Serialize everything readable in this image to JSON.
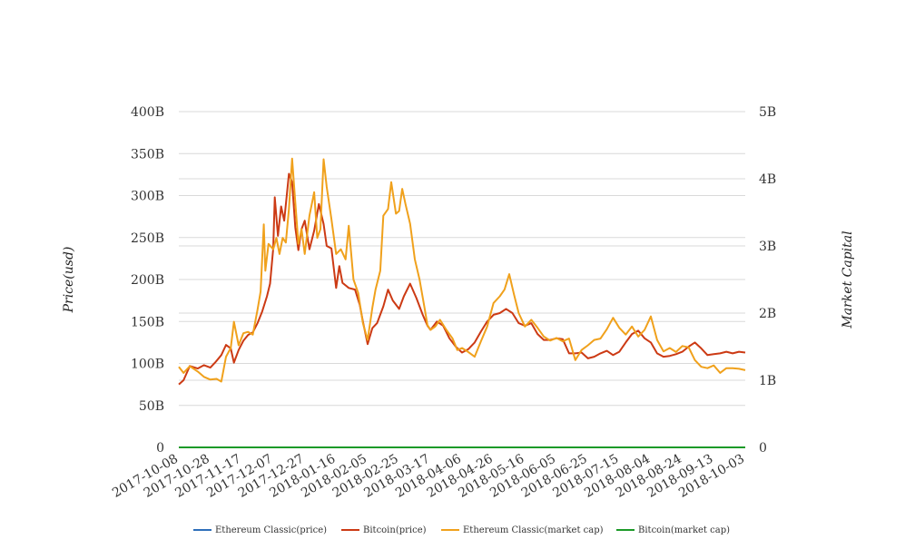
{
  "chart_data": {
    "type": "line",
    "title": "",
    "ylabel_left": "Price(usd)",
    "ylabel_right": "Market Capital",
    "y_left": {
      "min": 0,
      "max": 400000000000,
      "ticks": [
        0,
        50000000000,
        100000000000,
        150000000000,
        200000000000,
        250000000000,
        300000000000,
        350000000000,
        400000000000
      ],
      "tick_labels": [
        "0",
        "50B",
        "100B",
        "150B",
        "200B",
        "250B",
        "300B",
        "350B",
        "400B"
      ]
    },
    "y_right": {
      "min": 0,
      "max": 5000000000,
      "ticks": [
        0,
        1000000000,
        2000000000,
        3000000000,
        4000000000,
        5000000000
      ],
      "tick_labels": [
        "0",
        "1B",
        "2B",
        "3B",
        "4B",
        "5B"
      ]
    },
    "x_range": [
      "2017-10-08",
      "2018-10-03"
    ],
    "x_tick_labels": [
      "2017-10-08",
      "2017-10-28",
      "2017-11-17",
      "2017-12-07",
      "2017-12-27",
      "2018-01-16",
      "2018-02-05",
      "2018-02-25",
      "2018-03-17",
      "2018-04-06",
      "2018-04-26",
      "2018-05-16",
      "2018-06-05",
      "2018-06-25",
      "2018-07-15",
      "2018-08-04",
      "2018-08-24",
      "2018-09-13",
      "2018-10-03"
    ],
    "grid": true,
    "legend_position": "bottom",
    "series": [
      {
        "name": "Ethereum Classic(price)",
        "axis": "left",
        "color": "#2e6fba",
        "points": []
      },
      {
        "name": "Bitcoin(price)",
        "axis": "left",
        "color": "#cc3a14",
        "points": [
          [
            "2017-10-08",
            75000000000
          ],
          [
            "2017-10-11",
            80000000000
          ],
          [
            "2017-10-15",
            97000000000
          ],
          [
            "2017-10-20",
            94000000000
          ],
          [
            "2017-10-24",
            98000000000
          ],
          [
            "2017-10-28",
            95000000000
          ],
          [
            "2017-10-31",
            101000000000
          ],
          [
            "2017-11-04",
            110000000000
          ],
          [
            "2017-11-07",
            122000000000
          ],
          [
            "2017-11-10",
            118000000000
          ],
          [
            "2017-11-12",
            101000000000
          ],
          [
            "2017-11-15",
            116000000000
          ],
          [
            "2017-11-18",
            127000000000
          ],
          [
            "2017-11-21",
            134000000000
          ],
          [
            "2017-11-24",
            137000000000
          ],
          [
            "2017-11-27",
            148000000000
          ],
          [
            "2017-11-30",
            162000000000
          ],
          [
            "2017-12-03",
            180000000000
          ],
          [
            "2017-12-05",
            195000000000
          ],
          [
            "2017-12-07",
            237000000000
          ],
          [
            "2017-12-08",
            298000000000
          ],
          [
            "2017-12-10",
            252000000000
          ],
          [
            "2017-12-12",
            287000000000
          ],
          [
            "2017-12-14",
            270000000000
          ],
          [
            "2017-12-17",
            326000000000
          ],
          [
            "2017-12-19",
            316000000000
          ],
          [
            "2017-12-21",
            262000000000
          ],
          [
            "2017-12-23",
            235000000000
          ],
          [
            "2017-12-25",
            260000000000
          ],
          [
            "2017-12-27",
            270000000000
          ],
          [
            "2017-12-30",
            236000000000
          ],
          [
            "2018-01-02",
            258000000000
          ],
          [
            "2018-01-05",
            290000000000
          ],
          [
            "2018-01-08",
            266000000000
          ],
          [
            "2018-01-10",
            240000000000
          ],
          [
            "2018-01-13",
            237000000000
          ],
          [
            "2018-01-16",
            190000000000
          ],
          [
            "2018-01-18",
            216000000000
          ],
          [
            "2018-01-20",
            196000000000
          ],
          [
            "2018-01-24",
            190000000000
          ],
          [
            "2018-01-28",
            188000000000
          ],
          [
            "2018-01-31",
            170000000000
          ],
          [
            "2018-02-02",
            150000000000
          ],
          [
            "2018-02-05",
            123000000000
          ],
          [
            "2018-02-08",
            142000000000
          ],
          [
            "2018-02-11",
            148000000000
          ],
          [
            "2018-02-15",
            168000000000
          ],
          [
            "2018-02-18",
            188000000000
          ],
          [
            "2018-02-21",
            175000000000
          ],
          [
            "2018-02-25",
            165000000000
          ],
          [
            "2018-02-28",
            180000000000
          ],
          [
            "2018-03-04",
            195000000000
          ],
          [
            "2018-03-08",
            178000000000
          ],
          [
            "2018-03-12",
            158000000000
          ],
          [
            "2018-03-15",
            145000000000
          ],
          [
            "2018-03-17",
            140000000000
          ],
          [
            "2018-03-21",
            150000000000
          ],
          [
            "2018-03-25",
            145000000000
          ],
          [
            "2018-03-29",
            130000000000
          ],
          [
            "2018-04-02",
            120000000000
          ],
          [
            "2018-04-06",
            113000000000
          ],
          [
            "2018-04-10",
            117000000000
          ],
          [
            "2018-04-14",
            125000000000
          ],
          [
            "2018-04-18",
            138000000000
          ],
          [
            "2018-04-22",
            150000000000
          ],
          [
            "2018-04-26",
            158000000000
          ],
          [
            "2018-04-30",
            160000000000
          ],
          [
            "2018-05-04",
            165000000000
          ],
          [
            "2018-05-08",
            160000000000
          ],
          [
            "2018-05-12",
            148000000000
          ],
          [
            "2018-05-16",
            145000000000
          ],
          [
            "2018-05-20",
            148000000000
          ],
          [
            "2018-05-24",
            135000000000
          ],
          [
            "2018-05-28",
            128000000000
          ],
          [
            "2018-06-01",
            128000000000
          ],
          [
            "2018-06-05",
            130000000000
          ],
          [
            "2018-06-09",
            129000000000
          ],
          [
            "2018-06-13",
            112000000000
          ],
          [
            "2018-06-17",
            112000000000
          ],
          [
            "2018-06-21",
            113000000000
          ],
          [
            "2018-06-25",
            106000000000
          ],
          [
            "2018-06-29",
            108000000000
          ],
          [
            "2018-07-03",
            112000000000
          ],
          [
            "2018-07-07",
            115000000000
          ],
          [
            "2018-07-11",
            110000000000
          ],
          [
            "2018-07-15",
            114000000000
          ],
          [
            "2018-07-19",
            125000000000
          ],
          [
            "2018-07-23",
            135000000000
          ],
          [
            "2018-07-27",
            139000000000
          ],
          [
            "2018-07-31",
            130000000000
          ],
          [
            "2018-08-04",
            125000000000
          ],
          [
            "2018-08-08",
            112000000000
          ],
          [
            "2018-08-12",
            108000000000
          ],
          [
            "2018-08-16",
            109000000000
          ],
          [
            "2018-08-20",
            111000000000
          ],
          [
            "2018-08-24",
            114000000000
          ],
          [
            "2018-08-28",
            120000000000
          ],
          [
            "2018-09-01",
            125000000000
          ],
          [
            "2018-09-05",
            118000000000
          ],
          [
            "2018-09-09",
            110000000000
          ],
          [
            "2018-09-13",
            111000000000
          ],
          [
            "2018-09-17",
            112000000000
          ],
          [
            "2018-09-21",
            114000000000
          ],
          [
            "2018-09-25",
            112000000000
          ],
          [
            "2018-09-29",
            114000000000
          ],
          [
            "2018-10-03",
            113000000000
          ]
        ]
      },
      {
        "name": "Ethereum Classic(market cap)",
        "axis": "right",
        "color": "#f0a11c",
        "points": [
          [
            "2017-10-08",
            1200000000
          ],
          [
            "2017-10-11",
            1110000000
          ],
          [
            "2017-10-15",
            1210000000
          ],
          [
            "2017-10-20",
            1130000000
          ],
          [
            "2017-10-24",
            1050000000
          ],
          [
            "2017-10-28",
            1010000000
          ],
          [
            "2017-11-01",
            1020000000
          ],
          [
            "2017-11-04",
            980000000
          ],
          [
            "2017-11-07",
            1350000000
          ],
          [
            "2017-11-10",
            1480000000
          ],
          [
            "2017-11-12",
            1870000000
          ],
          [
            "2017-11-15",
            1520000000
          ],
          [
            "2017-11-18",
            1700000000
          ],
          [
            "2017-11-21",
            1720000000
          ],
          [
            "2017-11-24",
            1680000000
          ],
          [
            "2017-11-27",
            2050000000
          ],
          [
            "2017-11-29",
            2320000000
          ],
          [
            "2017-12-01",
            3320000000
          ],
          [
            "2017-12-02",
            2630000000
          ],
          [
            "2017-12-04",
            3030000000
          ],
          [
            "2017-12-07",
            2950000000
          ],
          [
            "2017-12-09",
            3120000000
          ],
          [
            "2017-12-11",
            2880000000
          ],
          [
            "2017-12-13",
            3120000000
          ],
          [
            "2017-12-15",
            3050000000
          ],
          [
            "2017-12-17",
            3550000000
          ],
          [
            "2017-12-19",
            4300000000
          ],
          [
            "2017-12-21",
            3650000000
          ],
          [
            "2017-12-23",
            3030000000
          ],
          [
            "2017-12-25",
            3250000000
          ],
          [
            "2017-12-27",
            2880000000
          ],
          [
            "2017-12-30",
            3450000000
          ],
          [
            "2018-01-02",
            3800000000
          ],
          [
            "2018-01-04",
            3120000000
          ],
          [
            "2018-01-06",
            3250000000
          ],
          [
            "2018-01-08",
            4290000000
          ],
          [
            "2018-01-10",
            3880000000
          ],
          [
            "2018-01-13",
            3400000000
          ],
          [
            "2018-01-16",
            2880000000
          ],
          [
            "2018-01-19",
            2950000000
          ],
          [
            "2018-01-22",
            2800000000
          ],
          [
            "2018-01-24",
            3300000000
          ],
          [
            "2018-01-27",
            2500000000
          ],
          [
            "2018-01-30",
            2300000000
          ],
          [
            "2018-02-02",
            1850000000
          ],
          [
            "2018-02-05",
            1600000000
          ],
          [
            "2018-02-08",
            2080000000
          ],
          [
            "2018-02-10",
            2350000000
          ],
          [
            "2018-02-13",
            2630000000
          ],
          [
            "2018-02-15",
            3450000000
          ],
          [
            "2018-02-18",
            3550000000
          ],
          [
            "2018-02-20",
            3950000000
          ],
          [
            "2018-02-23",
            3480000000
          ],
          [
            "2018-02-25",
            3520000000
          ],
          [
            "2018-02-27",
            3850000000
          ],
          [
            "2018-03-01",
            3630000000
          ],
          [
            "2018-03-04",
            3330000000
          ],
          [
            "2018-03-07",
            2800000000
          ],
          [
            "2018-03-10",
            2500000000
          ],
          [
            "2018-03-13",
            2100000000
          ],
          [
            "2018-03-15",
            1820000000
          ],
          [
            "2018-03-17",
            1750000000
          ],
          [
            "2018-03-20",
            1800000000
          ],
          [
            "2018-03-23",
            1900000000
          ],
          [
            "2018-03-27",
            1750000000
          ],
          [
            "2018-03-31",
            1620000000
          ],
          [
            "2018-04-03",
            1450000000
          ],
          [
            "2018-04-06",
            1480000000
          ],
          [
            "2018-04-10",
            1420000000
          ],
          [
            "2018-04-14",
            1350000000
          ],
          [
            "2018-04-18",
            1580000000
          ],
          [
            "2018-04-22",
            1800000000
          ],
          [
            "2018-04-26",
            2150000000
          ],
          [
            "2018-04-30",
            2250000000
          ],
          [
            "2018-05-03",
            2350000000
          ],
          [
            "2018-05-06",
            2580000000
          ],
          [
            "2018-05-09",
            2280000000
          ],
          [
            "2018-05-12",
            2000000000
          ],
          [
            "2018-05-16",
            1800000000
          ],
          [
            "2018-05-20",
            1900000000
          ],
          [
            "2018-05-24",
            1780000000
          ],
          [
            "2018-05-28",
            1650000000
          ],
          [
            "2018-06-01",
            1590000000
          ],
          [
            "2018-06-05",
            1630000000
          ],
          [
            "2018-06-09",
            1580000000
          ],
          [
            "2018-06-13",
            1620000000
          ],
          [
            "2018-06-17",
            1300000000
          ],
          [
            "2018-06-21",
            1450000000
          ],
          [
            "2018-06-25",
            1520000000
          ],
          [
            "2018-06-29",
            1600000000
          ],
          [
            "2018-07-03",
            1620000000
          ],
          [
            "2018-07-07",
            1760000000
          ],
          [
            "2018-07-11",
            1930000000
          ],
          [
            "2018-07-15",
            1780000000
          ],
          [
            "2018-07-19",
            1680000000
          ],
          [
            "2018-07-23",
            1800000000
          ],
          [
            "2018-07-27",
            1650000000
          ],
          [
            "2018-07-31",
            1750000000
          ],
          [
            "2018-08-04",
            1950000000
          ],
          [
            "2018-08-08",
            1600000000
          ],
          [
            "2018-08-12",
            1430000000
          ],
          [
            "2018-08-16",
            1480000000
          ],
          [
            "2018-08-20",
            1420000000
          ],
          [
            "2018-08-24",
            1510000000
          ],
          [
            "2018-08-28",
            1490000000
          ],
          [
            "2018-09-01",
            1300000000
          ],
          [
            "2018-09-05",
            1200000000
          ],
          [
            "2018-09-09",
            1180000000
          ],
          [
            "2018-09-13",
            1220000000
          ],
          [
            "2018-09-17",
            1110000000
          ],
          [
            "2018-09-21",
            1180000000
          ],
          [
            "2018-09-25",
            1180000000
          ],
          [
            "2018-09-29",
            1170000000
          ],
          [
            "2018-10-03",
            1150000000
          ]
        ]
      },
      {
        "name": "Bitcoin(market cap)",
        "axis": "right",
        "color": "#1c9a28",
        "points": [
          [
            "2017-10-08",
            0
          ],
          [
            "2018-10-03",
            0
          ]
        ]
      }
    ]
  }
}
